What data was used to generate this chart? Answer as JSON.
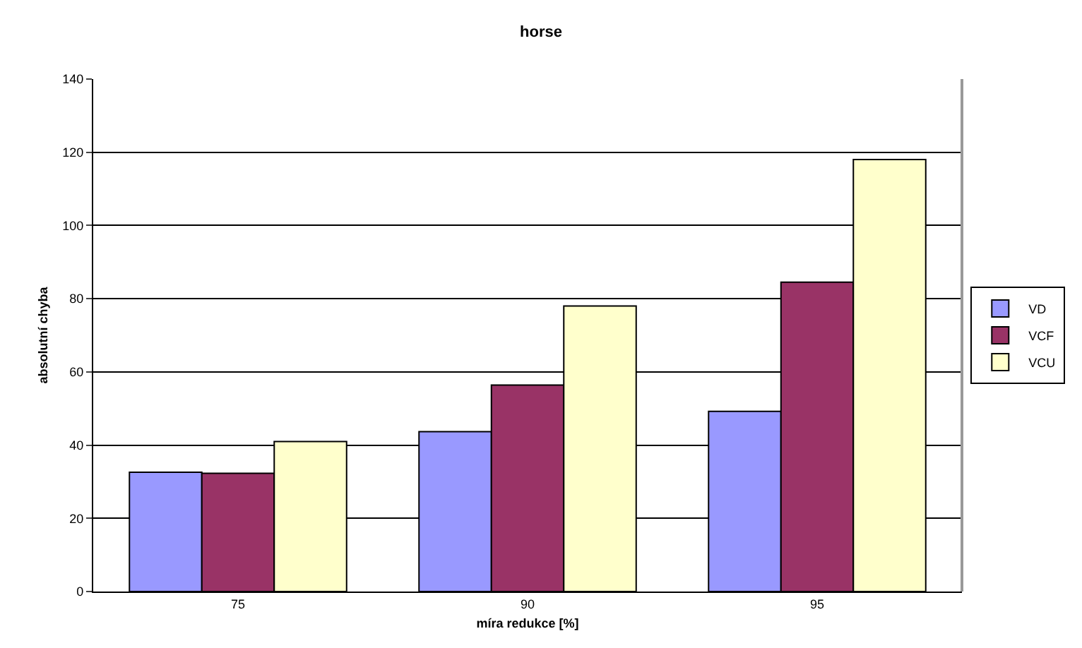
{
  "chart_data": {
    "type": "bar",
    "title": "horse",
    "xlabel": "míra redukce [%]",
    "ylabel": "absolutní chyba",
    "categories": [
      "75",
      "90",
      "95"
    ],
    "series": [
      {
        "name": "VD",
        "color": "#9999ff",
        "values": [
          32.6,
          43.7,
          49.2
        ]
      },
      {
        "name": "VCF",
        "color": "#993366",
        "values": [
          32.3,
          56.4,
          84.5
        ]
      },
      {
        "name": "VCU",
        "color": "#ffffcc",
        "values": [
          41,
          78,
          118
        ]
      }
    ],
    "ylim": [
      0,
      140
    ],
    "yticks": [
      0,
      20,
      40,
      60,
      80,
      100,
      120,
      140
    ],
    "grid": "y",
    "legend": "right"
  }
}
